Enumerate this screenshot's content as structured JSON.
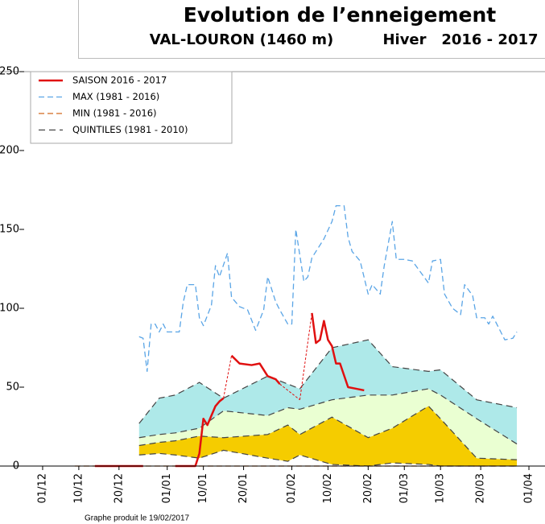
{
  "chart_data": {
    "type": "line",
    "title": "Evolution de l’enneigement",
    "subtitle": "VAL-LOURON (1460 m)",
    "season": "Hiver   2016 - 2017",
    "note": "Graphe produit le 19/02/2017",
    "xlim": [
      -5,
      125
    ],
    "xticks": [
      {
        "value": 0,
        "label": "01/12"
      },
      {
        "value": 9,
        "label": "10/12"
      },
      {
        "value": 19,
        "label": "20/12"
      },
      {
        "value": 31,
        "label": "01/01"
      },
      {
        "value": 40,
        "label": "10/01"
      },
      {
        "value": 50,
        "label": "20/01"
      },
      {
        "value": 62,
        "label": "01/02"
      },
      {
        "value": 71,
        "label": "10/02"
      },
      {
        "value": 81,
        "label": "20/02"
      },
      {
        "value": 90,
        "label": "01/03"
      },
      {
        "value": 99,
        "label": "10/03"
      },
      {
        "value": 109,
        "label": "20/03"
      },
      {
        "value": 121,
        "label": "01/04"
      }
    ],
    "ylim": [
      0,
      250
    ],
    "yticks": [
      0,
      50,
      100,
      150,
      200,
      250
    ],
    "series": [
      {
        "name": "SAISON 2016 - 2017",
        "color": "#e01010",
        "style": "solid",
        "x": [
          13,
          25,
          29,
          33,
          38,
          39,
          40,
          41,
          42,
          43,
          44,
          45,
          46,
          47,
          49,
          52,
          54,
          56,
          58,
          59,
          62,
          64,
          66,
          67,
          68,
          69,
          70,
          71,
          72,
          73,
          74,
          76,
          78,
          80
        ],
        "values": [
          0,
          0,
          null,
          0,
          0,
          8,
          30,
          26,
          32,
          38,
          41,
          43,
          null,
          70,
          65,
          64,
          65,
          57,
          55,
          52,
          null,
          42,
          null,
          97,
          78,
          80,
          92,
          80,
          76,
          65,
          65,
          50,
          49,
          48
        ]
      },
      {
        "name": "MAX (1981 - 2016)",
        "color": "#5aa5e6",
        "style": "dashed",
        "x": [
          24,
          25,
          26,
          27,
          28,
          29,
          30,
          31,
          34,
          35,
          36,
          38,
          39,
          40,
          42,
          43,
          44,
          46,
          47,
          49,
          51,
          53,
          55,
          56,
          58,
          59,
          61,
          62,
          63,
          65,
          66,
          67,
          69,
          70,
          72,
          73,
          75,
          76,
          77,
          79,
          81,
          82,
          84,
          85,
          87,
          88,
          90,
          92,
          94,
          96,
          97,
          99,
          100,
          102,
          104,
          105,
          107,
          108,
          110,
          111,
          112,
          113,
          115,
          117,
          118
        ],
        "values": [
          82,
          81,
          60,
          90,
          90,
          85,
          90,
          85,
          85,
          104,
          115,
          115,
          94,
          89,
          102,
          127,
          120,
          135,
          107,
          101,
          99,
          86,
          99,
          120,
          104,
          99,
          90,
          90,
          150,
          117,
          120,
          132,
          140,
          144,
          155,
          165,
          165,
          145,
          136,
          130,
          109,
          115,
          109,
          127,
          155,
          131,
          131,
          130,
          123,
          116,
          130,
          131,
          109,
          100,
          96,
          115,
          108,
          94,
          94,
          90,
          95,
          90,
          80,
          81,
          85
        ]
      },
      {
        "name": "MIN (1981 - 2016)",
        "color": "#d2691e",
        "style": "dashed",
        "x": [
          8,
          118
        ],
        "values": [
          0,
          0
        ]
      }
    ],
    "quintiles": {
      "name": "QUINTILES (1981 - 2010)",
      "color": "#444444",
      "x": [
        24,
        29,
        33,
        39,
        45,
        56,
        61,
        64,
        72,
        81,
        87,
        96,
        99,
        108,
        118
      ],
      "lines": [
        {
          "values": [
            7,
            8,
            7,
            5,
            10,
            5,
            3,
            7,
            1,
            0,
            2,
            1,
            0,
            0,
            0
          ]
        },
        {
          "values": [
            13,
            15,
            16,
            19,
            18,
            20,
            26,
            20,
            31,
            18,
            24,
            38,
            30,
            5,
            4
          ]
        },
        {
          "values": [
            18,
            20,
            21,
            24,
            35,
            32,
            37,
            36,
            42,
            45,
            45,
            49,
            45,
            30,
            14
          ]
        },
        {
          "values": [
            27,
            43,
            45,
            53,
            43,
            57,
            52,
            49,
            75,
            80,
            63,
            60,
            61,
            42,
            37
          ]
        }
      ],
      "fills": [
        "#f5cc00",
        "#eaffd2",
        "#aee9e9"
      ]
    },
    "legend": "upper left"
  }
}
